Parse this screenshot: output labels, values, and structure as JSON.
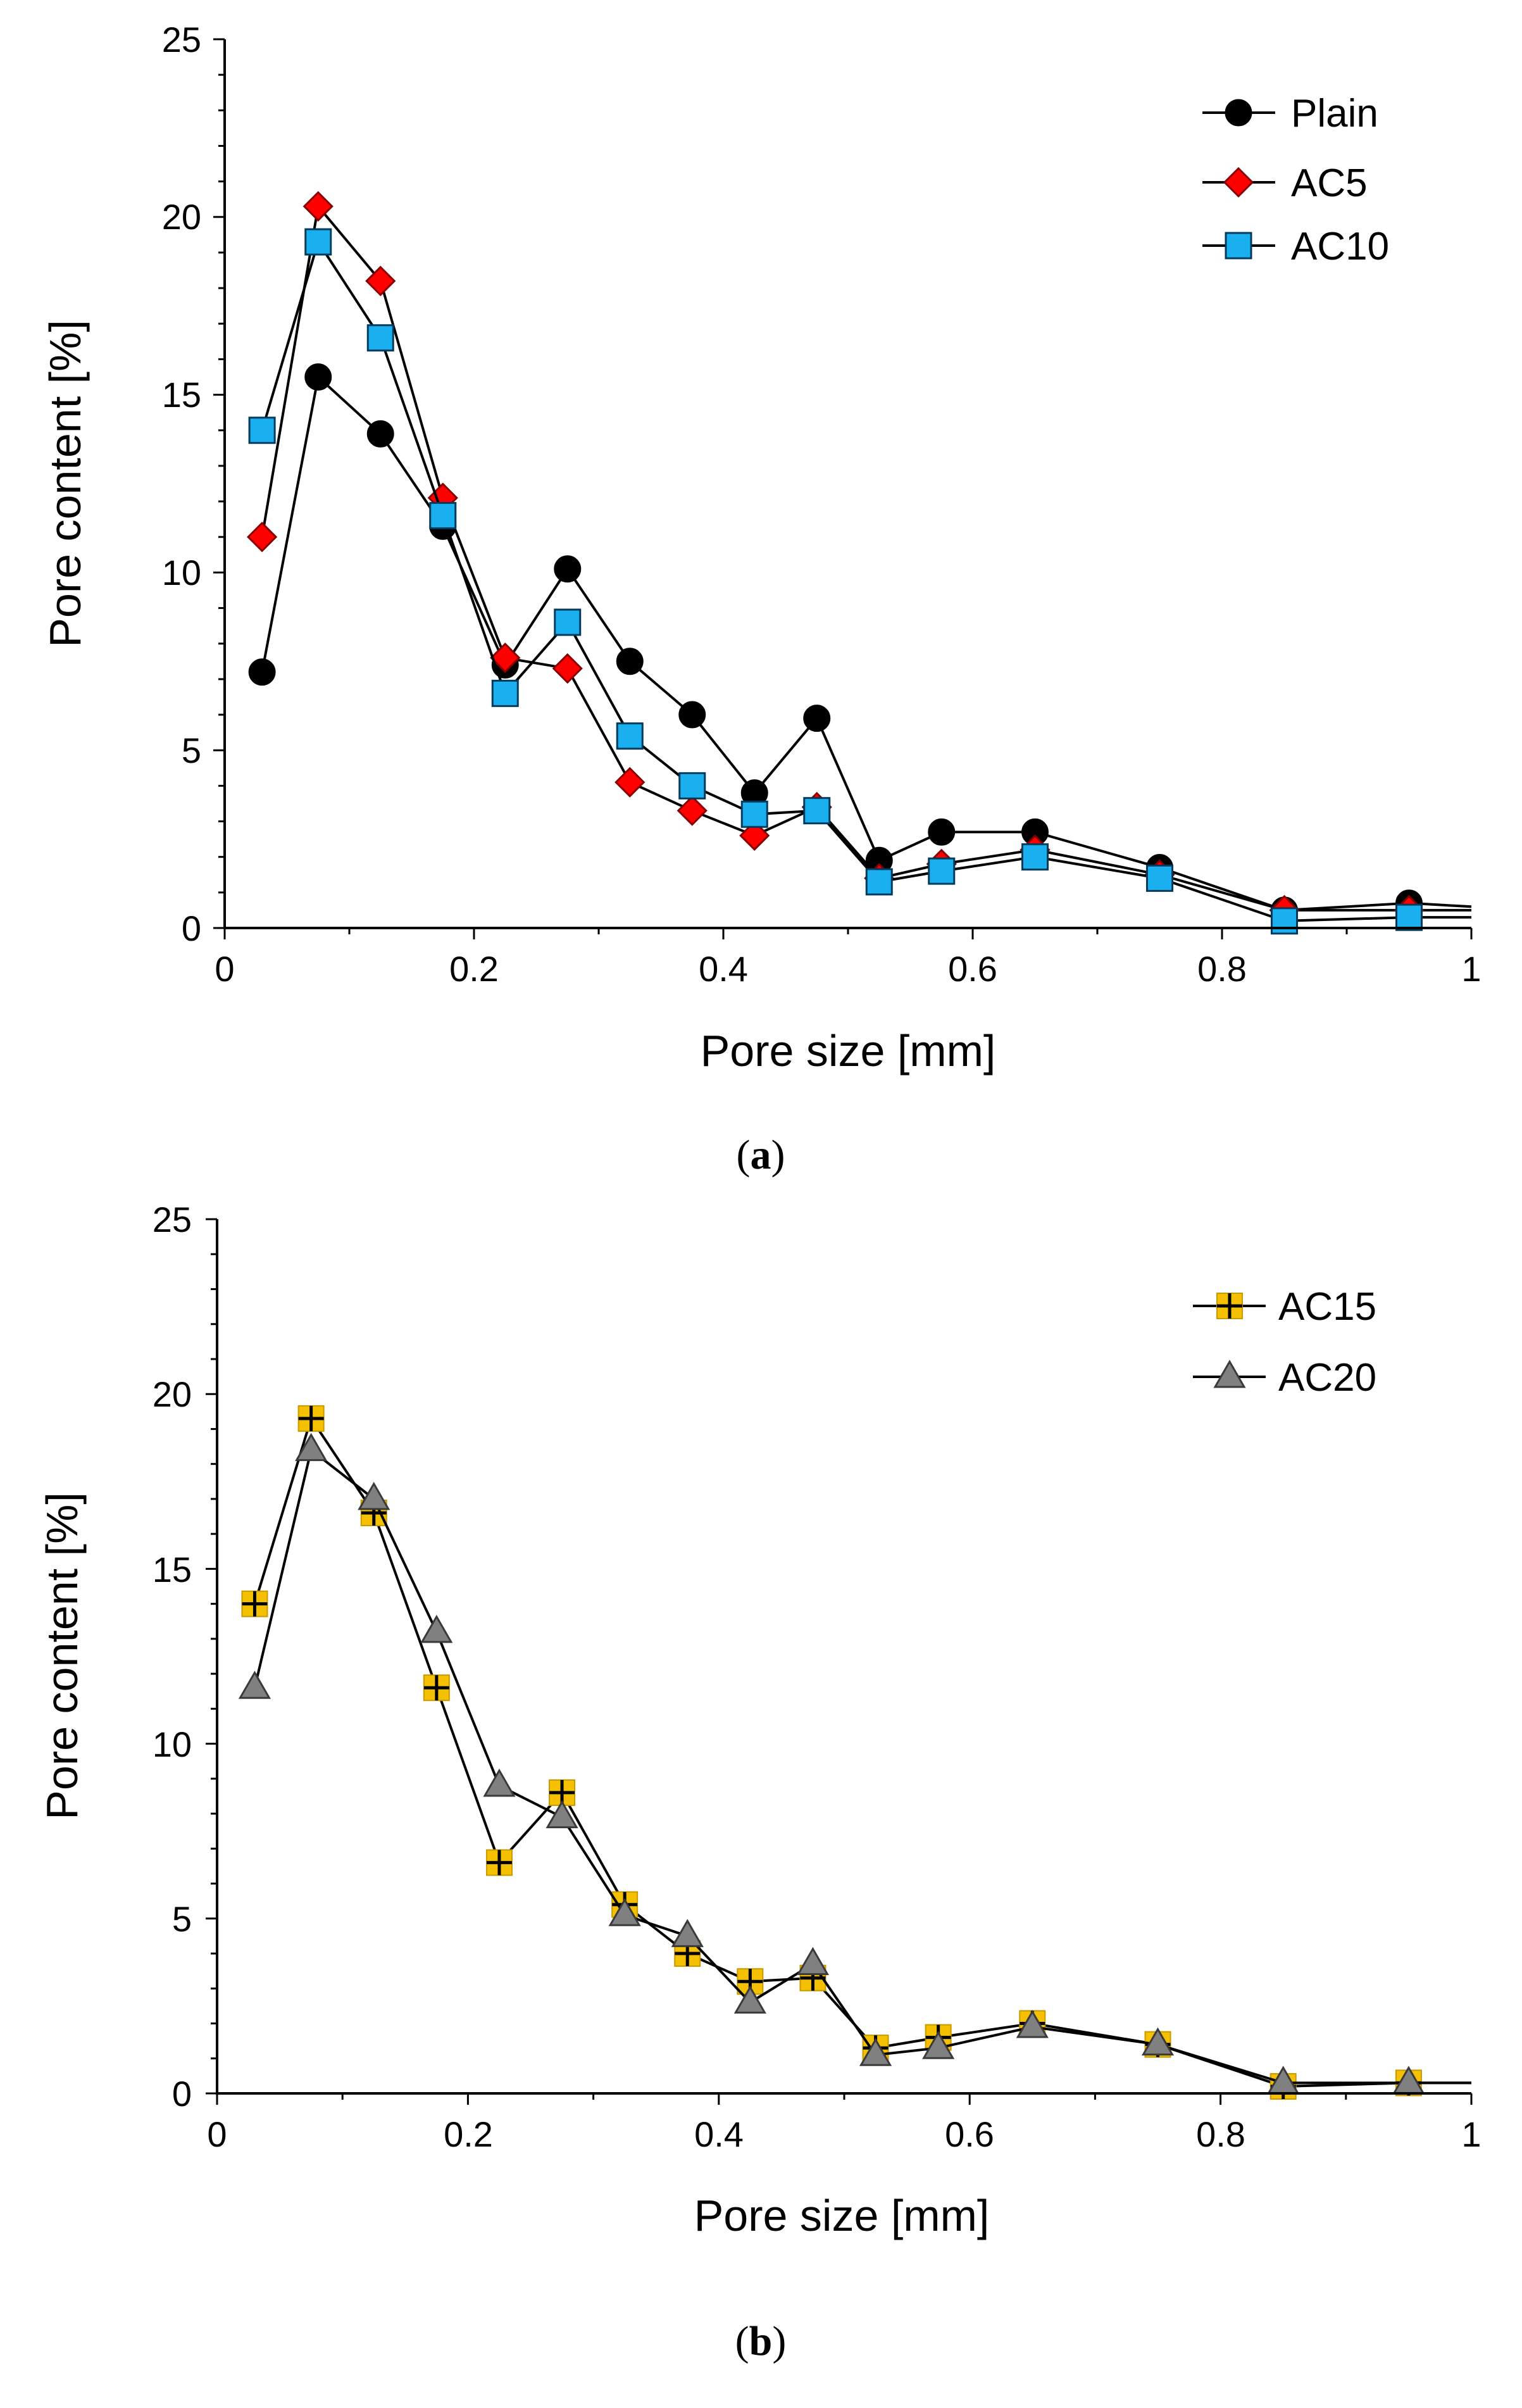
{
  "chart_data": [
    {
      "type": "line",
      "panel_label_open": "(",
      "panel_label": "a",
      "panel_label_close": ")",
      "xlabel": "Pore size [mm]",
      "ylabel": "Pore content [%]",
      "xlim": [
        0,
        1
      ],
      "ylim": [
        0,
        25
      ],
      "xticks": [
        "0",
        "0.2",
        "0.4",
        "0.6",
        "0.8",
        "1"
      ],
      "yticks": [
        "0",
        "5",
        "10",
        "15",
        "20",
        "25"
      ],
      "grid": false,
      "legend_position": "top-right",
      "x": [
        0.03,
        0.075,
        0.125,
        0.175,
        0.225,
        0.275,
        0.325,
        0.375,
        0.425,
        0.475,
        0.525,
        0.575,
        0.65,
        0.75,
        0.85,
        0.95,
        1.0
      ],
      "series": [
        {
          "name": "Plain",
          "marker": "circle",
          "color": "#000000",
          "values": [
            7.2,
            15.5,
            13.9,
            11.3,
            7.4,
            10.1,
            7.5,
            6.0,
            3.8,
            5.9,
            1.9,
            2.7,
            2.7,
            1.7,
            0.5,
            0.7,
            0.6
          ]
        },
        {
          "name": "AC5",
          "marker": "diamond",
          "color": "#ff0000",
          "values": [
            11.0,
            20.3,
            18.2,
            12.1,
            7.6,
            7.3,
            4.1,
            3.3,
            2.6,
            3.4,
            1.4,
            1.8,
            2.2,
            1.5,
            0.5,
            0.5,
            0.5
          ]
        },
        {
          "name": "AC10",
          "marker": "square",
          "color": "#1ab0f0",
          "values": [
            14.0,
            19.3,
            16.6,
            11.6,
            6.6,
            8.6,
            5.4,
            4.0,
            3.2,
            3.3,
            1.3,
            1.6,
            2.0,
            1.4,
            0.2,
            0.3,
            0.3
          ]
        }
      ]
    },
    {
      "type": "line",
      "panel_label_open": "(",
      "panel_label": "b",
      "panel_label_close": ")",
      "xlabel": "Pore size [mm]",
      "ylabel": "Pore content [%]",
      "xlim": [
        0,
        1
      ],
      "ylim": [
        0,
        25
      ],
      "xticks": [
        "0",
        "0.2",
        "0.4",
        "0.6",
        "0.8",
        "1"
      ],
      "yticks": [
        "0",
        "5",
        "10",
        "15",
        "20",
        "25"
      ],
      "grid": false,
      "legend_position": "top-right",
      "x": [
        0.03,
        0.075,
        0.125,
        0.175,
        0.225,
        0.275,
        0.325,
        0.375,
        0.425,
        0.475,
        0.525,
        0.575,
        0.65,
        0.75,
        0.85,
        0.95,
        1.0
      ],
      "series": [
        {
          "name": "AC15",
          "marker": "plus-square",
          "color": "#f5c000",
          "values": [
            14.0,
            19.3,
            16.6,
            11.6,
            6.6,
            8.6,
            5.4,
            4.0,
            3.2,
            3.3,
            1.3,
            1.6,
            2.0,
            1.4,
            0.2,
            0.3,
            0.3
          ]
        },
        {
          "name": "AC20",
          "marker": "triangle",
          "color": "#808080",
          "values": [
            11.6,
            18.4,
            17.0,
            13.2,
            8.8,
            7.9,
            5.1,
            4.5,
            2.6,
            3.7,
            1.1,
            1.3,
            1.9,
            1.4,
            0.3,
            0.3,
            0.3
          ]
        }
      ]
    }
  ]
}
